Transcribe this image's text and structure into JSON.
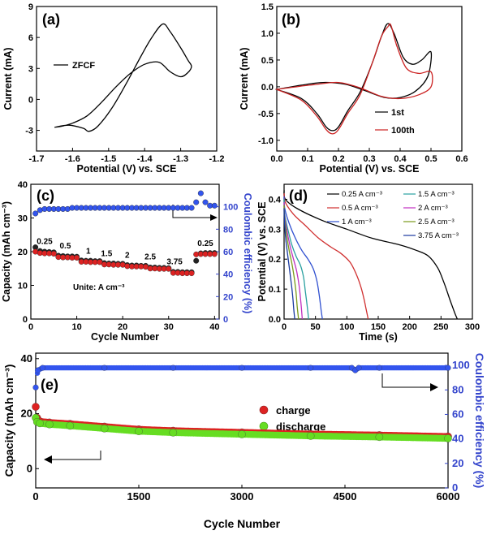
{
  "chart_data": [
    {
      "id": "a",
      "panel_label": "(a)",
      "type": "line",
      "xlabel": "Potential (V) vs. SCE",
      "ylabel": "Current (mA)",
      "xlim": [
        -1.7,
        -1.2
      ],
      "ylim": [
        -5,
        9
      ],
      "xticks": [
        "-1.7",
        "-1.6",
        "-1.5",
        "-1.4",
        "-1.3",
        "-1.2"
      ],
      "yticks": [
        "-3",
        "0",
        "3",
        "6",
        "9"
      ],
      "series": [
        {
          "name": "ZFCF",
          "color": "#000000",
          "x": [
            -1.65,
            -1.61,
            -1.57,
            -1.555,
            -1.53,
            -1.49,
            -1.45,
            -1.41,
            -1.38,
            -1.35,
            -1.33,
            -1.3,
            -1.28,
            -1.27,
            -1.28,
            -1.3,
            -1.33,
            -1.36,
            -1.4,
            -1.44,
            -1.48,
            -1.52,
            -1.56,
            -1.6,
            -1.63,
            -1.65
          ],
          "y": [
            -2.7,
            -2.5,
            -2.8,
            -3.1,
            -2.6,
            -0.8,
            1.6,
            4.2,
            6.0,
            7.3,
            6.6,
            5.0,
            3.8,
            3.2,
            2.6,
            2.2,
            2.7,
            3.6,
            3.4,
            2.5,
            1.2,
            -0.3,
            -1.6,
            -2.3,
            -2.6,
            -2.7
          ]
        }
      ]
    },
    {
      "id": "b",
      "panel_label": "(b)",
      "type": "line",
      "xlabel": "Potential (V) vs. SCE",
      "ylabel": "Current (mA)",
      "xlim": [
        0.0,
        0.6
      ],
      "ylim": [
        -1.2,
        1.5
      ],
      "xticks": [
        "0.0",
        "0.1",
        "0.2",
        "0.3",
        "0.4",
        "0.5",
        "0.6"
      ],
      "yticks": [
        "-1.0",
        "-0.5",
        "0.0",
        "0.5",
        "1.0",
        "1.5"
      ],
      "series": [
        {
          "name": "1st",
          "color": "#000000",
          "x": [
            0.0,
            0.08,
            0.13,
            0.16,
            0.18,
            0.2,
            0.23,
            0.27,
            0.31,
            0.34,
            0.36,
            0.38,
            0.41,
            0.44,
            0.47,
            0.5,
            0.49,
            0.45,
            0.4,
            0.35,
            0.28,
            0.22,
            0.15,
            0.08,
            0.0
          ],
          "y": [
            -0.05,
            -0.22,
            -0.5,
            -0.75,
            -0.82,
            -0.75,
            -0.45,
            -0.1,
            0.45,
            0.95,
            1.18,
            1.0,
            0.55,
            0.42,
            0.5,
            0.65,
            0.2,
            -0.08,
            -0.2,
            -0.2,
            -0.06,
            0.05,
            0.08,
            0.03,
            -0.05
          ]
        },
        {
          "name": "100th",
          "color": "#cc2222",
          "x": [
            0.0,
            0.08,
            0.13,
            0.16,
            0.18,
            0.2,
            0.23,
            0.27,
            0.31,
            0.34,
            0.36,
            0.37,
            0.39,
            0.42,
            0.46,
            0.5,
            0.5,
            0.46,
            0.4,
            0.34,
            0.27,
            0.2,
            0.12,
            0.05,
            0.0
          ],
          "y": [
            -0.05,
            -0.25,
            -0.55,
            -0.8,
            -0.88,
            -0.8,
            -0.5,
            -0.15,
            0.45,
            0.95,
            1.12,
            1.15,
            0.75,
            0.35,
            0.25,
            0.28,
            0.0,
            -0.15,
            -0.22,
            -0.18,
            -0.02,
            0.08,
            0.04,
            -0.01,
            -0.05
          ]
        }
      ]
    },
    {
      "id": "c",
      "panel_label": "(c)",
      "type": "scatter",
      "xlabel": "Cycle Number",
      "ylabel": "Capacity (mAh cm⁻³)",
      "ylabel_right": "Coulombic efficiency (%)",
      "xlim": [
        0,
        41
      ],
      "ylim": [
        0,
        40
      ],
      "ylim_right": [
        0,
        120
      ],
      "xticks": [
        "0",
        "10",
        "20",
        "30",
        "40"
      ],
      "yticks": [
        "0",
        "10",
        "20",
        "30",
        "40"
      ],
      "yticks_right": [
        "0",
        "20",
        "40",
        "60",
        "80",
        "100"
      ],
      "annotation": "Unite: A cm⁻³",
      "rate_labels": [
        {
          "text": "0.25",
          "x": 3,
          "y": 22.3
        },
        {
          "text": "0.5",
          "x": 7.5,
          "y": 21.0
        },
        {
          "text": "1",
          "x": 12.5,
          "y": 19.4
        },
        {
          "text": "1.5",
          "x": 16.5,
          "y": 18.7
        },
        {
          "text": "2",
          "x": 21,
          "y": 18.2
        },
        {
          "text": "2.5",
          "x": 26,
          "y": 17.7
        },
        {
          "text": "3.75",
          "x": 31.3,
          "y": 16.3
        },
        {
          "text": "0.25",
          "x": 38,
          "y": 21.7
        }
      ],
      "series": [
        {
          "name": "charge",
          "color": "#222222",
          "axis": "left",
          "x": [
            1,
            2,
            3,
            4,
            5,
            6,
            7,
            8,
            9,
            10,
            11,
            12,
            13,
            14,
            15,
            16,
            17,
            18,
            19,
            20,
            21,
            22,
            23,
            24,
            25,
            26,
            27,
            28,
            29,
            30,
            31,
            32,
            33,
            34,
            35,
            36,
            37,
            38,
            39,
            40
          ],
          "values": [
            21.3,
            20.2,
            20.0,
            19.9,
            19.8,
            18.8,
            18.7,
            18.6,
            18.6,
            18.5,
            17.4,
            17.3,
            17.3,
            17.2,
            17.2,
            16.6,
            16.5,
            16.5,
            16.4,
            16.4,
            16.0,
            15.9,
            15.9,
            15.8,
            15.8,
            15.3,
            15.3,
            15.2,
            15.2,
            15.1,
            14.0,
            14.0,
            13.9,
            13.9,
            13.9,
            17.3,
            19.5,
            19.6,
            19.6,
            19.6
          ]
        },
        {
          "name": "discharge",
          "color": "#dd2222",
          "axis": "left",
          "x": [
            1,
            2,
            3,
            4,
            5,
            6,
            7,
            8,
            9,
            10,
            11,
            12,
            13,
            14,
            15,
            16,
            17,
            18,
            19,
            20,
            21,
            22,
            23,
            24,
            25,
            26,
            27,
            28,
            29,
            30,
            31,
            32,
            33,
            34,
            35,
            36,
            37,
            38,
            39,
            40
          ],
          "values": [
            20.0,
            19.6,
            19.5,
            19.5,
            19.4,
            18.4,
            18.3,
            18.3,
            18.2,
            18.2,
            17.0,
            17.0,
            16.9,
            16.9,
            16.9,
            16.2,
            16.2,
            16.1,
            16.1,
            16.1,
            15.7,
            15.6,
            15.6,
            15.6,
            15.5,
            15.0,
            15.0,
            14.9,
            14.9,
            14.9,
            13.7,
            13.7,
            13.6,
            13.6,
            13.6,
            19.2,
            19.3,
            19.3,
            19.3,
            19.3
          ]
        },
        {
          "name": "Coulombic efficiency",
          "color": "#3355ee",
          "axis": "right",
          "x": [
            1,
            2,
            3,
            4,
            5,
            6,
            7,
            8,
            9,
            10,
            11,
            12,
            13,
            14,
            15,
            16,
            17,
            18,
            19,
            20,
            21,
            22,
            23,
            24,
            25,
            26,
            27,
            28,
            29,
            30,
            31,
            32,
            33,
            34,
            35,
            36,
            37,
            38,
            39,
            40
          ],
          "values": [
            94,
            97,
            98,
            98,
            98,
            98,
            98,
            98,
            99,
            99,
            99,
            99,
            99,
            99,
            99,
            99,
            99,
            99,
            99,
            99,
            99,
            99,
            99,
            99,
            99,
            99,
            99,
            99,
            99,
            99,
            99,
            99,
            99,
            99,
            99,
            104,
            112,
            104,
            101,
            101
          ]
        }
      ]
    },
    {
      "id": "d",
      "panel_label": "(d)",
      "type": "line",
      "xlabel": "Time (s)",
      "ylabel": "Potential (V) vs. SCE",
      "xlim": [
        0,
        300
      ],
      "ylim": [
        0,
        0.45
      ],
      "xticks": [
        "0",
        "50",
        "100",
        "150",
        "200",
        "250",
        "300"
      ],
      "yticks": [
        "0.0",
        "0.1",
        "0.2",
        "0.3",
        "0.4"
      ],
      "series": [
        {
          "name": "0.25 A cm⁻³",
          "color": "#000000",
          "x": [
            0,
            2,
            20,
            60,
            100,
            140,
            180,
            210,
            230,
            245,
            255,
            265,
            272,
            276
          ],
          "y": [
            0.43,
            0.4,
            0.37,
            0.33,
            0.3,
            0.27,
            0.25,
            0.23,
            0.21,
            0.17,
            0.12,
            0.06,
            0.02,
            0.0
          ]
        },
        {
          "name": "0.5 A cm⁻³",
          "color": "#d03030",
          "x": [
            0,
            2,
            15,
            35,
            55,
            75,
            90,
            105,
            115,
            122,
            127,
            131,
            134
          ],
          "y": [
            0.42,
            0.39,
            0.35,
            0.31,
            0.27,
            0.24,
            0.22,
            0.19,
            0.15,
            0.11,
            0.07,
            0.03,
            0.0
          ]
        },
        {
          "name": "1 A cm⁻³",
          "color": "#3050d0",
          "x": [
            0,
            1,
            8,
            18,
            28,
            38,
            46,
            52,
            56,
            59,
            61
          ],
          "y": [
            0.41,
            0.37,
            0.32,
            0.27,
            0.23,
            0.2,
            0.17,
            0.13,
            0.08,
            0.03,
            0.0
          ]
        },
        {
          "name": "1.5 A cm⁻³",
          "color": "#2aa0a0",
          "x": [
            0,
            1,
            6,
            12,
            19,
            26,
            31,
            34,
            37,
            39
          ],
          "y": [
            0.4,
            0.35,
            0.3,
            0.25,
            0.21,
            0.18,
            0.14,
            0.09,
            0.04,
            0.0
          ]
        },
        {
          "name": "2 A cm⁻³",
          "color": "#c030c0",
          "x": [
            0,
            1,
            5,
            10,
            15,
            20,
            24,
            27,
            29
          ],
          "y": [
            0.39,
            0.34,
            0.29,
            0.24,
            0.2,
            0.16,
            0.11,
            0.05,
            0.0
          ]
        },
        {
          "name": "2.5 A cm⁻³",
          "color": "#7a9a1a",
          "x": [
            0,
            1,
            4,
            8,
            12,
            16,
            19,
            21,
            23
          ],
          "y": [
            0.38,
            0.33,
            0.28,
            0.23,
            0.19,
            0.14,
            0.09,
            0.04,
            0.0
          ]
        },
        {
          "name": "3.75 A cm⁻³",
          "color": "#1a3aa0",
          "x": [
            0,
            1,
            3,
            6,
            9,
            12,
            14,
            15.5,
            17
          ],
          "y": [
            0.37,
            0.31,
            0.26,
            0.21,
            0.16,
            0.11,
            0.07,
            0.03,
            0.0
          ]
        }
      ]
    },
    {
      "id": "e",
      "panel_label": "(e)",
      "type": "scatter",
      "xlabel": "Cycle Number",
      "ylabel": "Capacity (mAh cm⁻³)",
      "ylabel_right": "Coulombic efficiency (%)",
      "xlim": [
        0,
        6000
      ],
      "ylim": [
        -7,
        42
      ],
      "ylim_right": [
        0,
        110
      ],
      "xticks": [
        "0",
        "1500",
        "3000",
        "4500",
        "6000"
      ],
      "yticks": [
        "0",
        "20",
        "40"
      ],
      "yticks_right": [
        "0",
        "20",
        "40",
        "60",
        "80",
        "100"
      ],
      "series": [
        {
          "name": "charge",
          "color": "#dd2222",
          "axis": "left",
          "x": [
            0,
            20,
            60,
            200,
            500,
            1000,
            1500,
            2000,
            3000,
            4000,
            5000,
            6000
          ],
          "values": [
            22.5,
            18.5,
            17.2,
            16.8,
            16.3,
            15.3,
            14.3,
            13.8,
            13.2,
            12.6,
            12.2,
            11.7
          ]
        },
        {
          "name": "discharge",
          "color": "#66dd22",
          "axis": "left",
          "x": [
            0,
            20,
            60,
            200,
            500,
            1000,
            1500,
            2000,
            3000,
            4000,
            5000,
            6000
          ],
          "values": [
            18.5,
            17.0,
            16.5,
            16.1,
            15.6,
            14.6,
            13.6,
            13.1,
            12.5,
            11.9,
            11.5,
            11.0
          ]
        },
        {
          "name": "Coulombic efficiency",
          "color": "#3355ee",
          "axis": "right",
          "x": [
            0,
            30,
            100,
            1000,
            2000,
            3000,
            4000,
            4600,
            4650,
            4700,
            5000,
            6000
          ],
          "values": [
            82,
            96,
            98,
            98,
            98,
            98,
            98,
            98,
            96,
            98,
            98,
            98
          ]
        }
      ]
    }
  ]
}
